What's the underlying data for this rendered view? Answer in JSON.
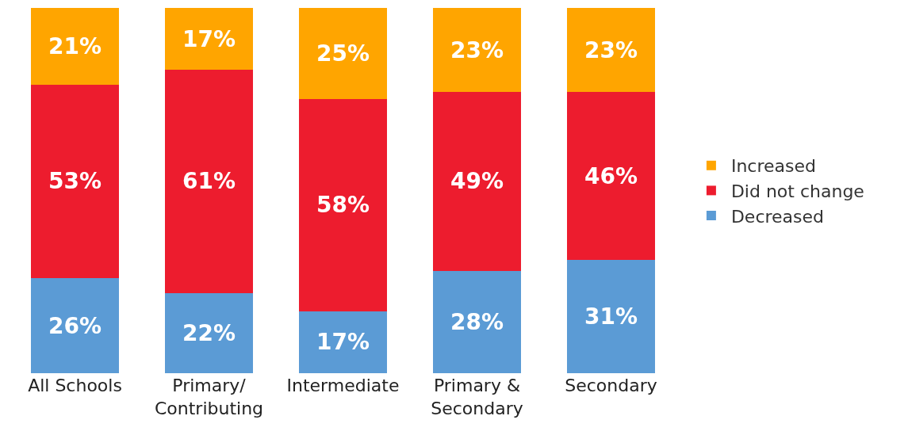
{
  "chart_data": {
    "type": "bar",
    "stacked": true,
    "categories": [
      "All Schools",
      "Primary/ Contributing",
      "Intermediate",
      "Primary & Secondary",
      "Secondary"
    ],
    "series": [
      {
        "name": "Decreased",
        "color": "#5b9bd5",
        "values": [
          26,
          22,
          17,
          28,
          31
        ],
        "value_labels": [
          "26%",
          "22%",
          "17%",
          "28%",
          "31%"
        ]
      },
      {
        "name": "Did not change",
        "color": "#ed1c2e",
        "values": [
          53,
          61,
          58,
          49,
          46
        ],
        "value_labels": [
          "53%",
          "61%",
          "58%",
          "49%",
          "46%"
        ]
      },
      {
        "name": "Increased",
        "color": "#ffa500",
        "values": [
          21,
          17,
          25,
          23,
          23
        ],
        "value_labels": [
          "21%",
          "17%",
          "25%",
          "23%",
          "23%"
        ]
      }
    ],
    "legend": "right"
  }
}
